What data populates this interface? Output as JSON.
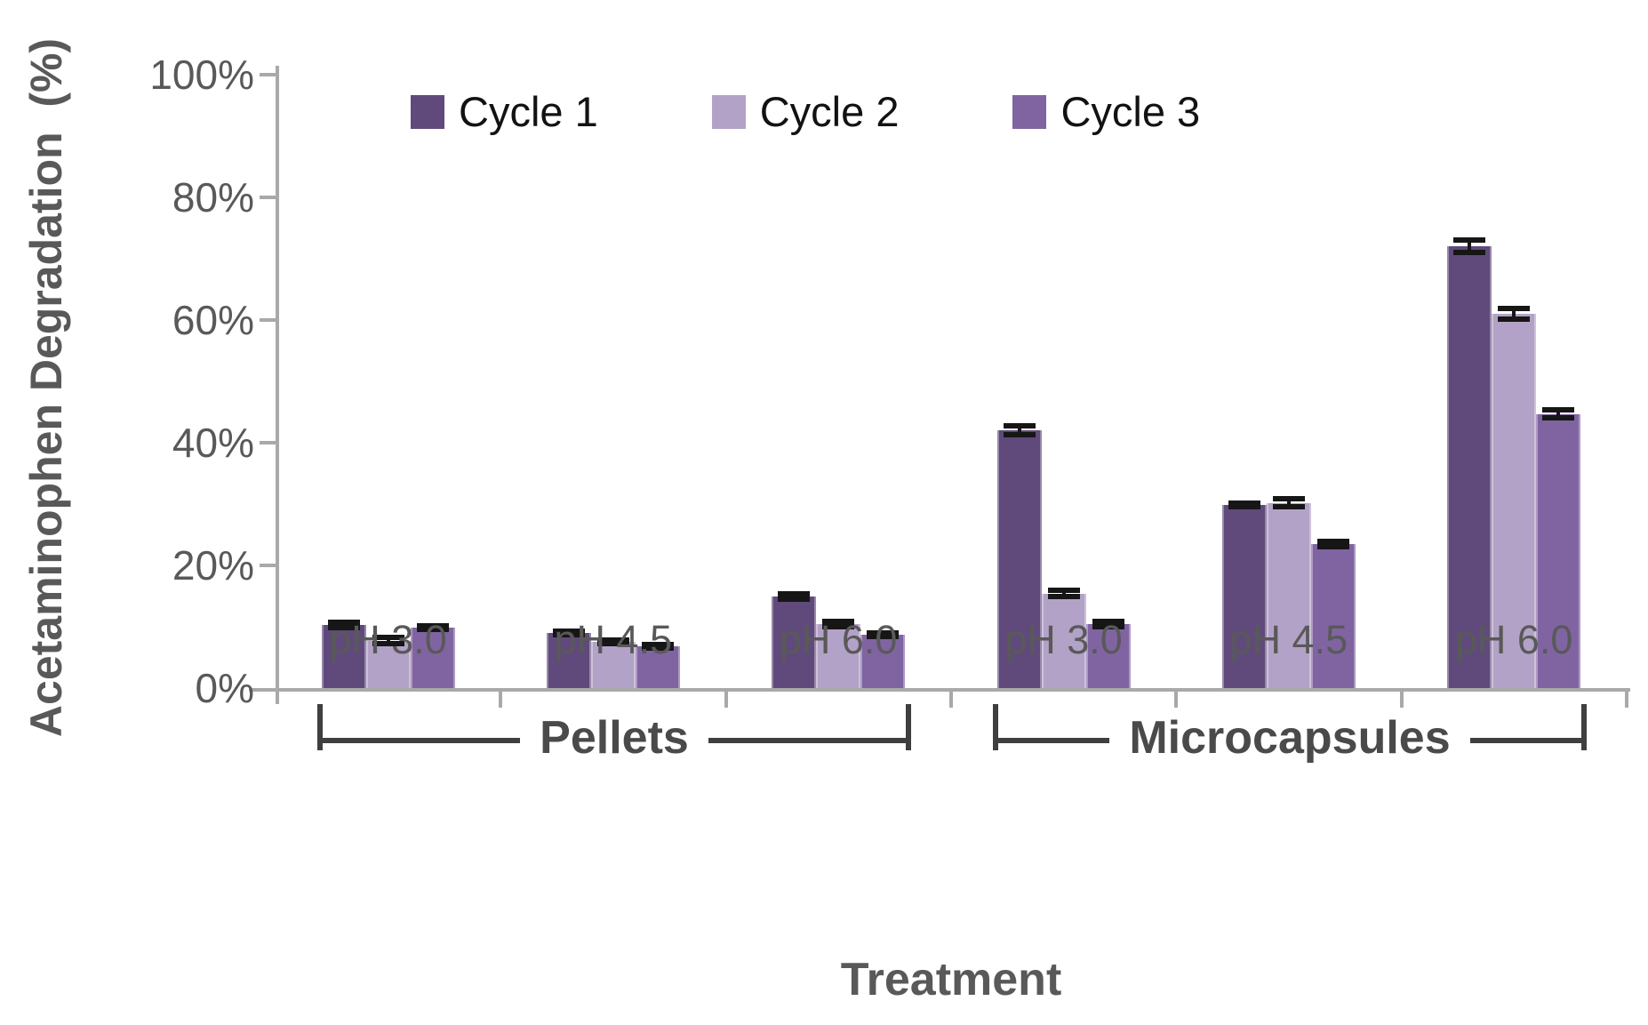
{
  "chart_data": {
    "type": "bar",
    "title": "",
    "ylabel": "Acetaminophen Degradation  (%)",
    "xlabel": "Treatment",
    "ylim": [
      0,
      100
    ],
    "ytick_values": [
      0,
      20,
      40,
      60,
      80,
      100
    ],
    "ytick_labels": [
      "0%",
      "20%",
      "40%",
      "60%",
      "80%",
      "100%"
    ],
    "grid": false,
    "legend_position": "top-inside",
    "categories": [
      "pH 3.0",
      "pH 4.5",
      "pH 6.0",
      "pH 3.0",
      "pH 4.5",
      "pH 6.0"
    ],
    "group_sections": [
      {
        "label": "Pellets",
        "first_category": 0,
        "last_category": 2
      },
      {
        "label": "Microcapsules",
        "first_category": 3,
        "last_category": 5
      }
    ],
    "series": [
      {
        "name": "Cycle 1",
        "color": "#604a7b",
        "values": [
          10.3,
          9.0,
          14.9,
          42.0,
          29.8,
          72.0
        ],
        "errors": [
          0.4,
          0.3,
          0.4,
          0.7,
          0.3,
          1.0
        ]
      },
      {
        "name": "Cycle 2",
        "color": "#b3a2c7",
        "values": [
          7.7,
          7.5,
          10.4,
          15.4,
          30.2,
          61.0
        ],
        "errors": [
          0.5,
          0.3,
          0.4,
          0.5,
          0.6,
          0.9
        ]
      },
      {
        "name": "Cycle 3",
        "color": "#8064a2",
        "values": [
          9.8,
          6.8,
          8.7,
          10.4,
          23.5,
          44.7
        ],
        "errors": [
          0.3,
          0.3,
          0.3,
          0.4,
          0.4,
          0.6
        ]
      }
    ]
  },
  "colors": {
    "axis": "#a9a9a9",
    "tick_label": "#595959",
    "axis_title": "#595959",
    "category_label": "#595959",
    "bracket": "#3f3f3f",
    "group_label": "#4a4a4a",
    "error_bar": "#161616",
    "background": "#ffffff"
  }
}
